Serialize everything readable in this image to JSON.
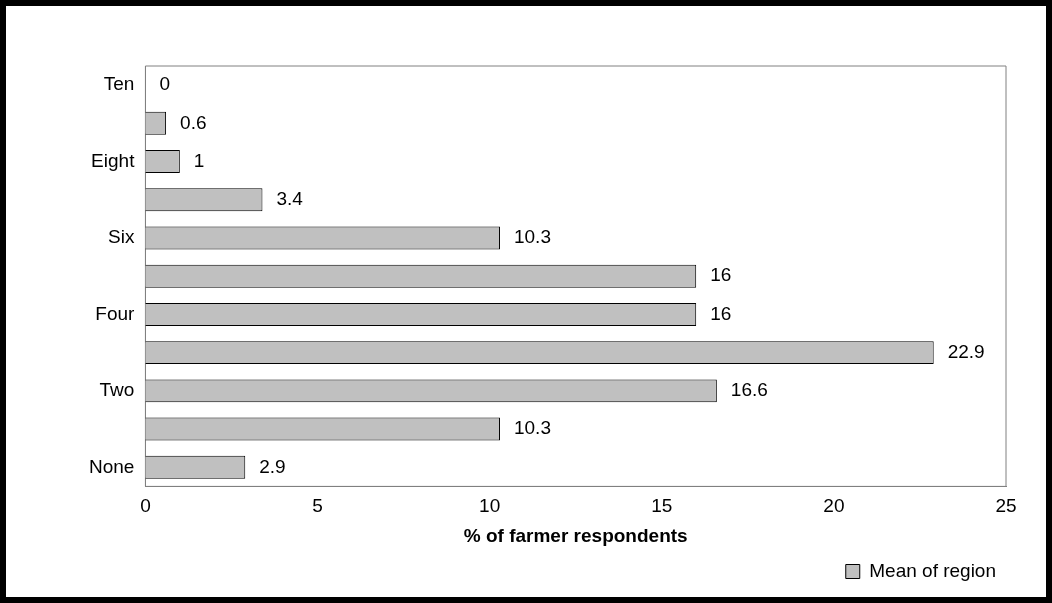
{
  "chart_data": {
    "type": "bar",
    "orientation": "horizontal",
    "xlabel": "% of farmer respondents",
    "categories": [
      "Ten",
      null,
      "Eight",
      null,
      "Six",
      null,
      "Four",
      null,
      "Two",
      null,
      "None"
    ],
    "series": [
      {
        "name": "Mean of region",
        "color": "#c0c0c0",
        "values": [
          0,
          0.6,
          1,
          3.4,
          10.3,
          16,
          16,
          22.9,
          16.6,
          10.3,
          2.9
        ]
      }
    ],
    "xlim": [
      0,
      25
    ],
    "xticks": [
      0,
      5,
      10,
      15,
      20,
      25
    ],
    "data_labels": true,
    "legend": "bottom right",
    "grid": false
  }
}
